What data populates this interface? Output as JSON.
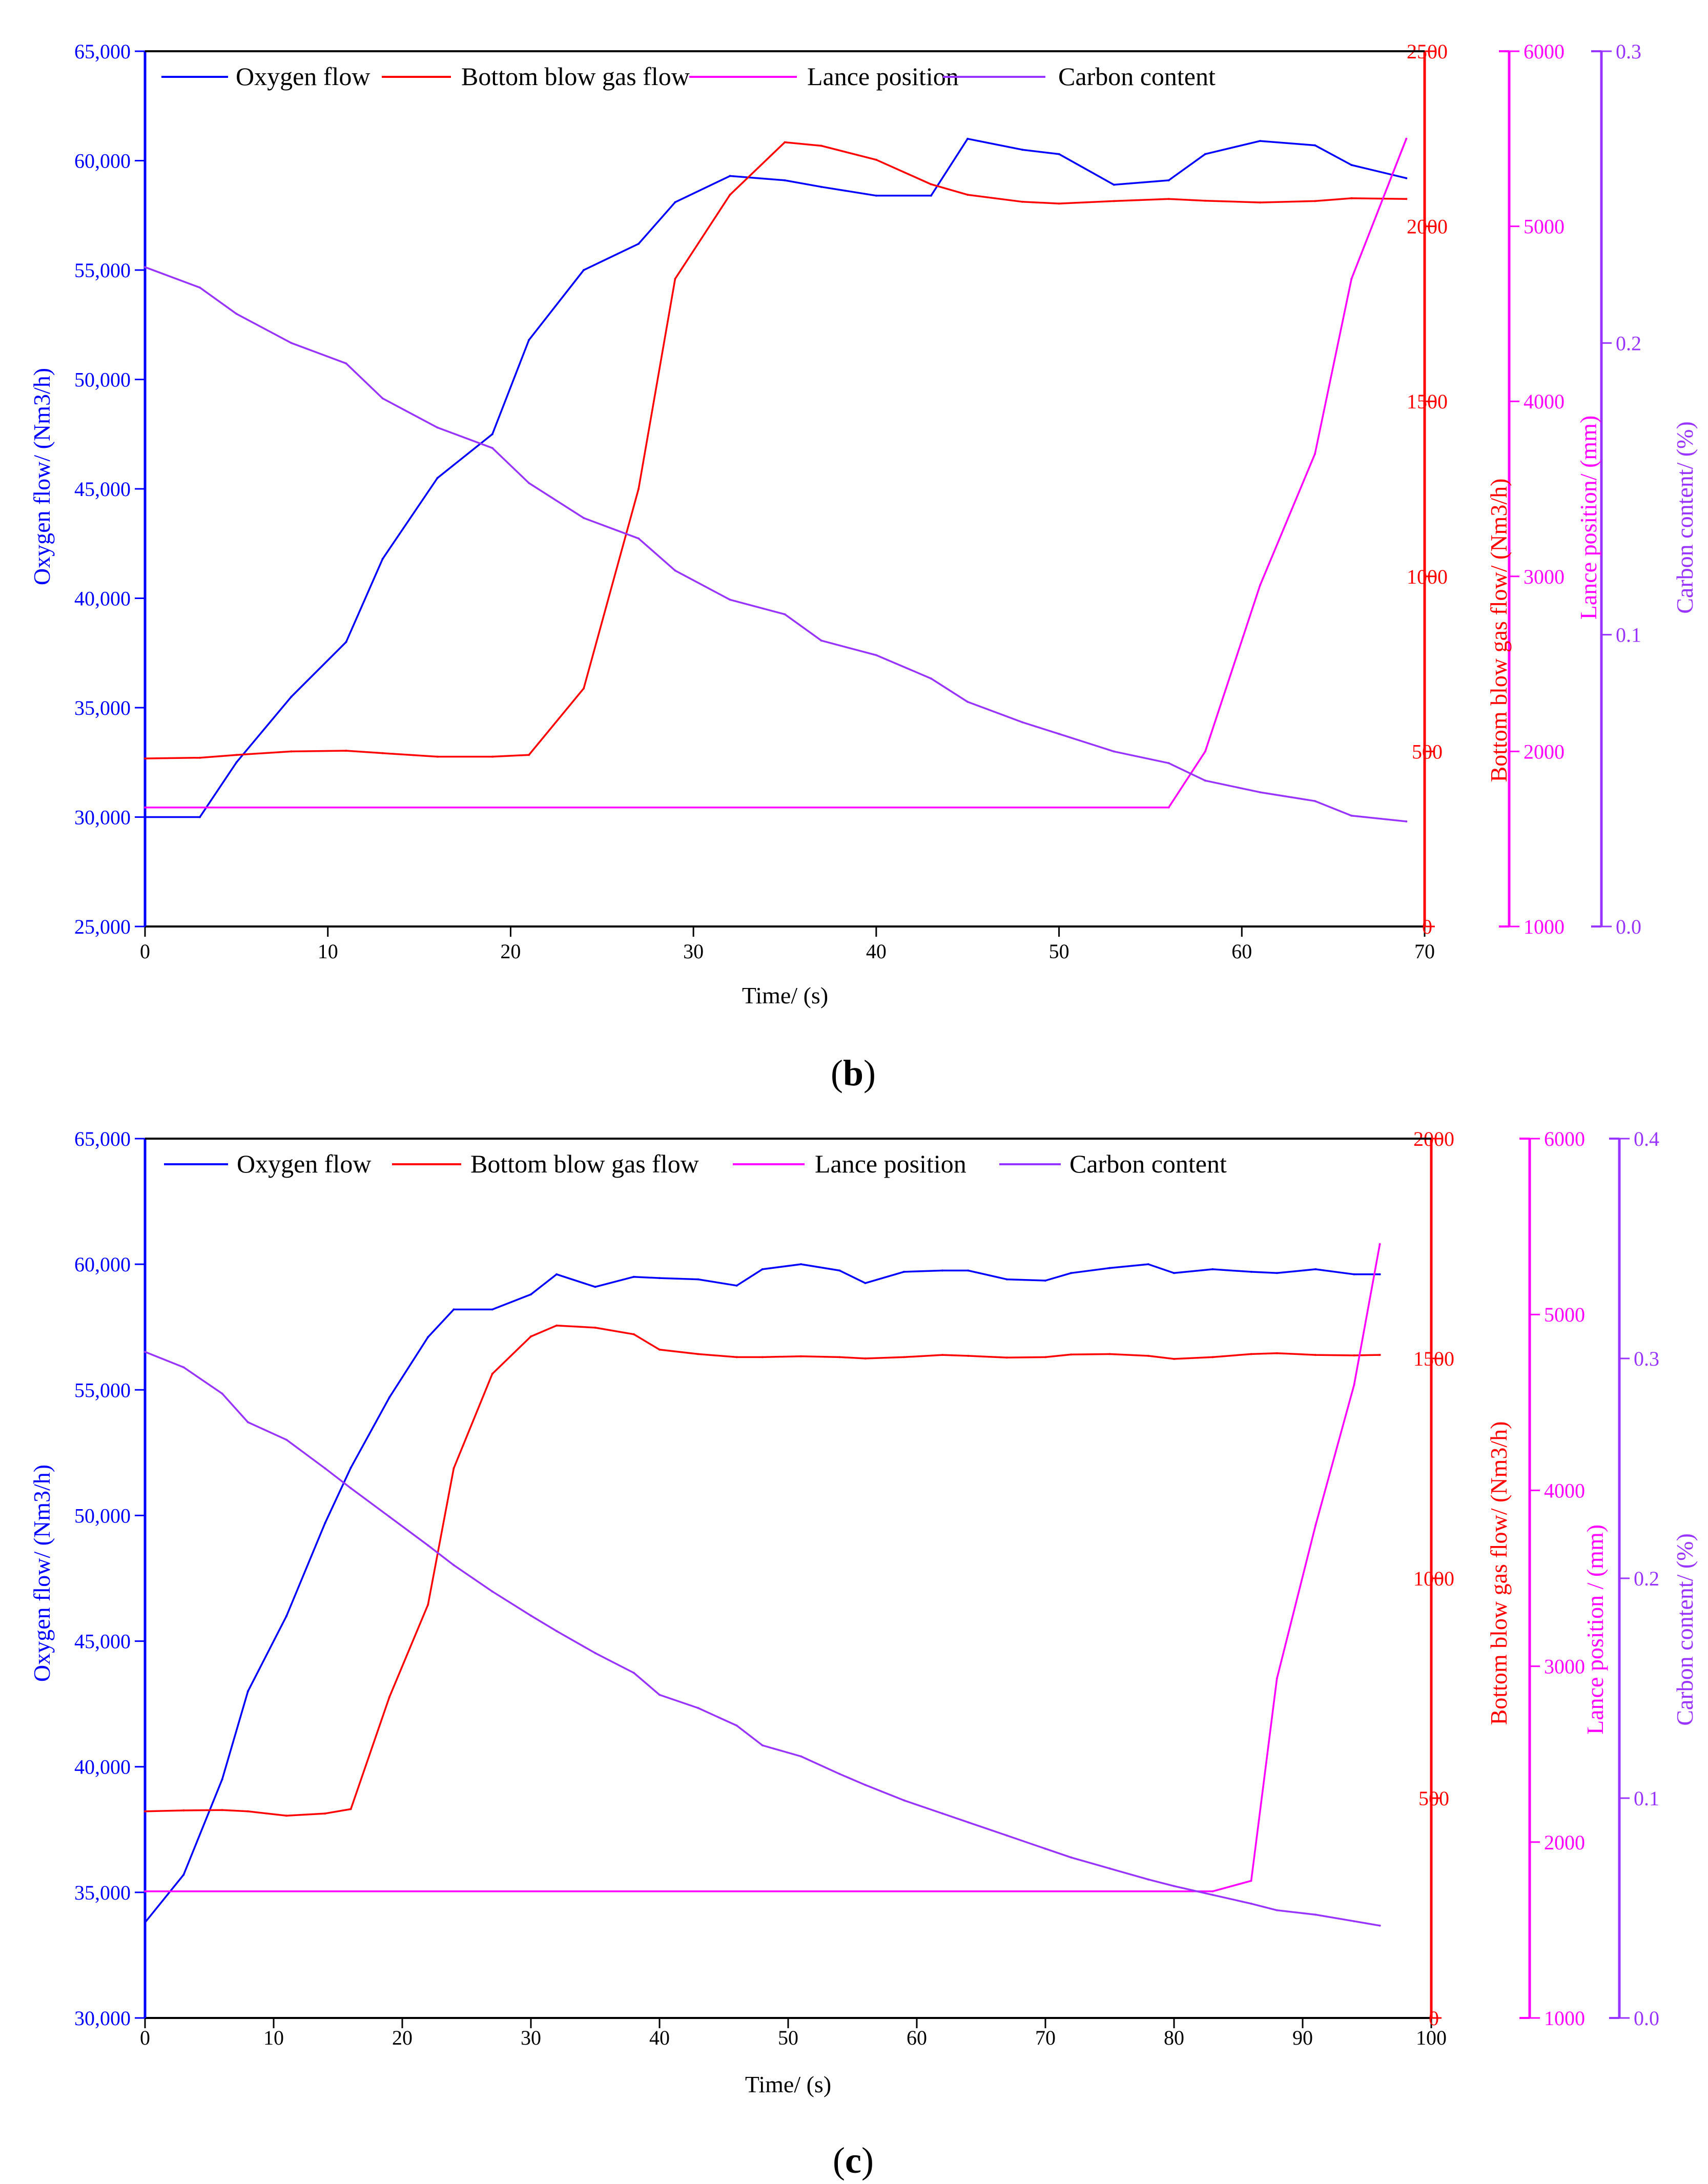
{
  "figure": {
    "panels": [
      {
        "label_open": "(",
        "label_letter": "b",
        "label_close": ")",
        "xlabel": "Time/ (s)",
        "axis_titles": {
          "oxygen": "Oxygen flow/ (Nm3/h)",
          "bottom": "Bottom blow gas flow/ (Nm3/h)",
          "lance": "Lance position/ (mm)",
          "carbon": "Carbon content/ (%)"
        }
      },
      {
        "label_open": "(",
        "label_letter": "c",
        "label_close": ")",
        "xlabel": "Time/ (s)",
        "axis_titles": {
          "oxygen": "Oxygen flow/ (Nm3/h)",
          "bottom": "Bottom blow gas flow/ (Nm3/h)",
          "lance": "Lance position / (mm)",
          "carbon": "Carbon content/ (%)"
        }
      }
    ]
  },
  "colors": {
    "oxygen": "#0000ff",
    "bottom": "#ff0000",
    "lance": "#ff00ff",
    "carbon": "#9933ff",
    "axis": "#000000"
  },
  "chart_data": [
    {
      "type": "line",
      "panel": "b",
      "xlabel": "Time/ (s)",
      "xlim": [
        0,
        70
      ],
      "xticks": [
        0,
        10,
        20,
        30,
        40,
        50,
        60,
        70
      ],
      "axes": {
        "oxygen": {
          "label": "Oxygen flow/ (Nm3/h)",
          "ylim": [
            25000,
            65000
          ],
          "ticks": [
            25000,
            30000,
            35000,
            40000,
            45000,
            50000,
            55000,
            60000,
            65000
          ],
          "tick_labels": [
            "25,000",
            "30,000",
            "35,000",
            "40,000",
            "45,000",
            "50,000",
            "55,000",
            "60,000",
            "65,000"
          ]
        },
        "bottom": {
          "label": "Bottom blow gas flow/ (Nm3/h)",
          "ylim": [
            0,
            2500
          ],
          "ticks": [
            0,
            500,
            1000,
            1500,
            2000,
            2500
          ],
          "tick_labels": [
            "0",
            "500",
            "1000",
            "1500",
            "2000",
            "2500"
          ]
        },
        "lance": {
          "label": "Lance position/ (mm)",
          "ylim": [
            1000,
            6000
          ],
          "ticks": [
            1000,
            2000,
            3000,
            4000,
            5000,
            6000
          ],
          "tick_labels": [
            "1000",
            "2000",
            "3000",
            "4000",
            "5000",
            "6000"
          ]
        },
        "carbon": {
          "label": "Carbon content/ (%)",
          "ylim": [
            0,
            0.3
          ],
          "ticks": [
            0,
            0.1,
            0.2,
            0.3
          ],
          "tick_labels": [
            "0.0",
            "0.1",
            "0.2",
            "0.3"
          ]
        }
      },
      "legend_position": "top",
      "series": [
        {
          "name": "Oxygen flow",
          "axis": "oxygen",
          "x": [
            0,
            3,
            5,
            8,
            11,
            13,
            16,
            19,
            21,
            24,
            27,
            29,
            32,
            35,
            37,
            40,
            43,
            45,
            48,
            50,
            53,
            56,
            58,
            61,
            64,
            66,
            69
          ],
          "y": [
            30000,
            30000,
            32500,
            35500,
            38000,
            41800,
            45500,
            47500,
            51800,
            55000,
            56200,
            58100,
            59300,
            59100,
            58800,
            58400,
            58400,
            61000,
            60500,
            60300,
            58900,
            59100,
            60300,
            60900,
            60700,
            59800,
            59200
          ]
        },
        {
          "name": "Bottom blow gas flow",
          "axis": "bottom",
          "x": [
            0,
            3,
            5,
            8,
            11,
            13,
            16,
            19,
            21,
            24,
            27,
            29,
            32,
            35,
            37,
            40,
            43,
            45,
            48,
            50,
            53,
            56,
            58,
            61,
            64,
            66,
            69
          ],
          "y": [
            480,
            482,
            490,
            500,
            502,
            495,
            485,
            485,
            490,
            680,
            1250,
            1850,
            2090,
            2240,
            2230,
            2190,
            2120,
            2090,
            2070,
            2065,
            2072,
            2078,
            2073,
            2068,
            2072,
            2080,
            2078
          ]
        },
        {
          "name": "Lance position",
          "axis": "lance",
          "x": [
            0,
            56,
            58,
            61,
            64,
            66,
            69
          ],
          "y": [
            1680,
            1680,
            2000,
            2950,
            3700,
            4700,
            5500
          ]
        },
        {
          "name": "Carbon content",
          "axis": "carbon",
          "x": [
            0,
            3,
            5,
            8,
            11,
            13,
            16,
            19,
            21,
            24,
            27,
            29,
            32,
            35,
            37,
            40,
            43,
            45,
            48,
            50,
            53,
            56,
            58,
            61,
            64,
            66,
            69
          ],
          "y": [
            0.226,
            0.219,
            0.21,
            0.2,
            0.193,
            0.181,
            0.171,
            0.164,
            0.152,
            0.14,
            0.133,
            0.122,
            0.112,
            0.107,
            0.098,
            0.093,
            0.085,
            0.077,
            0.07,
            0.066,
            0.06,
            0.056,
            0.05,
            0.046,
            0.043,
            0.038,
            0.036
          ]
        }
      ]
    },
    {
      "type": "line",
      "panel": "c",
      "xlabel": "Time/ (s)",
      "xlim": [
        0,
        100
      ],
      "xticks": [
        0,
        10,
        20,
        30,
        40,
        50,
        60,
        70,
        80,
        90,
        100
      ],
      "axes": {
        "oxygen": {
          "label": "Oxygen flow/ (Nm3/h)",
          "ylim": [
            30000,
            65000
          ],
          "ticks": [
            30000,
            35000,
            40000,
            45000,
            50000,
            55000,
            60000,
            65000
          ],
          "tick_labels": [
            "30,000",
            "35,000",
            "40,000",
            "45,000",
            "50,000",
            "55,000",
            "60,000",
            "65,000"
          ]
        },
        "bottom": {
          "label": "Bottom blow gas flow/ (Nm3/h)",
          "ylim": [
            0,
            2000
          ],
          "ticks": [
            0,
            500,
            1000,
            1500,
            2000
          ],
          "tick_labels": [
            "0",
            "500",
            "1000",
            "1500",
            "2000"
          ]
        },
        "lance": {
          "label": "Lance position / (mm)",
          "ylim": [
            1000,
            6000
          ],
          "ticks": [
            1000,
            2000,
            3000,
            4000,
            5000,
            6000
          ],
          "tick_labels": [
            "1000",
            "2000",
            "3000",
            "4000",
            "5000",
            "6000"
          ]
        },
        "carbon": {
          "label": "Carbon content/ (%)",
          "ylim": [
            0,
            0.4
          ],
          "ticks": [
            0,
            0.1,
            0.2,
            0.3,
            0.4
          ],
          "tick_labels": [
            "0.0",
            "0.1",
            "0.2",
            "0.3",
            "0.4"
          ]
        }
      },
      "legend_position": "top",
      "series": [
        {
          "name": "Oxygen flow",
          "axis": "oxygen",
          "x": [
            0,
            3,
            6,
            8,
            11,
            14,
            16,
            19,
            22,
            24,
            27,
            30,
            32,
            35,
            38,
            40,
            43,
            46,
            48,
            51,
            54,
            56,
            59,
            62,
            64,
            67,
            70,
            72,
            75,
            78,
            80,
            83,
            86,
            88,
            91,
            94,
            96
          ],
          "y": [
            33800,
            35700,
            39500,
            43000,
            46000,
            49700,
            51900,
            54700,
            57100,
            58200,
            58200,
            58800,
            59600,
            59100,
            59500,
            59450,
            59400,
            59150,
            59800,
            60000,
            59750,
            59250,
            59700,
            59750,
            59750,
            59400,
            59350,
            59650,
            59850,
            60000,
            59650,
            59800,
            59700,
            59650,
            59800,
            59600,
            59600
          ]
        },
        {
          "name": "Bottom blow gas flow",
          "axis": "bottom",
          "x": [
            0,
            3,
            6,
            8,
            11,
            14,
            16,
            19,
            22,
            24,
            27,
            30,
            32,
            35,
            38,
            40,
            43,
            46,
            48,
            51,
            54,
            56,
            59,
            62,
            64,
            67,
            70,
            72,
            75,
            78,
            80,
            83,
            86,
            88,
            91,
            94,
            96
          ],
          "y": [
            470,
            472,
            473,
            470,
            460,
            465,
            475,
            730,
            940,
            1250,
            1465,
            1550,
            1575,
            1570,
            1555,
            1520,
            1510,
            1503,
            1503,
            1505,
            1503,
            1500,
            1503,
            1508,
            1506,
            1502,
            1503,
            1509,
            1510,
            1506,
            1499,
            1503,
            1510,
            1512,
            1508,
            1507,
            1508
          ]
        },
        {
          "name": "Lance position",
          "axis": "lance",
          "x": [
            0,
            83,
            86,
            88,
            91,
            94,
            96
          ],
          "y": [
            1720,
            1720,
            1780,
            2930,
            3800,
            4600,
            5400
          ]
        },
        {
          "name": "Carbon content",
          "axis": "carbon",
          "x": [
            0,
            3,
            6,
            8,
            11,
            14,
            16,
            19,
            22,
            24,
            27,
            30,
            32,
            35,
            38,
            40,
            43,
            46,
            48,
            51,
            54,
            56,
            59,
            62,
            64,
            67,
            70,
            72,
            75,
            78,
            80,
            83,
            86,
            88,
            91,
            94,
            96
          ],
          "y": [
            0.303,
            0.296,
            0.284,
            0.271,
            0.263,
            0.25,
            0.241,
            0.228,
            0.215,
            0.206,
            0.194,
            0.183,
            0.176,
            0.166,
            0.157,
            0.147,
            0.141,
            0.133,
            0.124,
            0.119,
            0.111,
            0.106,
            0.099,
            0.093,
            0.089,
            0.083,
            0.077,
            0.073,
            0.068,
            0.063,
            0.06,
            0.056,
            0.052,
            0.049,
            0.047,
            0.044,
            0.042
          ]
        }
      ]
    }
  ]
}
